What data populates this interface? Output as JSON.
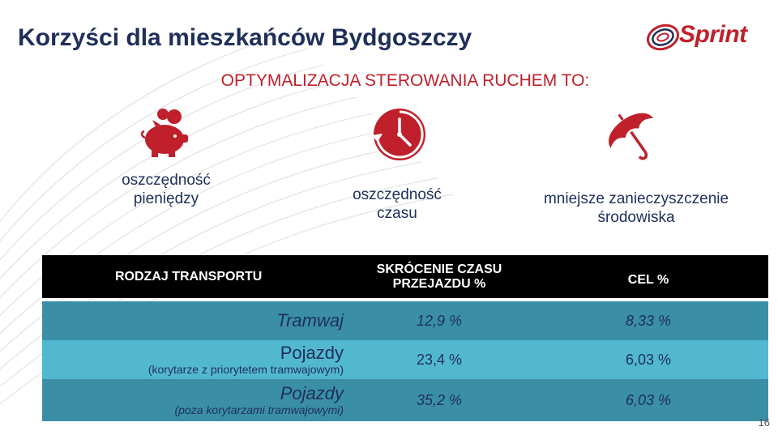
{
  "header": {
    "title": "Korzyści dla mieszkańców Bydgoszczy",
    "logo_text": "Sprint",
    "subtitle": "OPTYMALIZACJA STEROWANIA RUCHEM TO:"
  },
  "benefits": [
    {
      "icon": "piggy-bank-icon",
      "label_line1": "oszczędność",
      "label_line2": "pieniędzy"
    },
    {
      "icon": "clock-icon",
      "label_line1": "oszczędność",
      "label_line2": "czasu"
    },
    {
      "icon": "umbrella-icon",
      "label_line1": "mniejsze zanieczyszczenie",
      "label_line2": "środowiska"
    }
  ],
  "table": {
    "headers": {
      "col1": "RODZAJ TRANSPORTU",
      "col2_line1": "SKRÓCENIE CZASU",
      "col2_line2": "PRZEJAZDU %",
      "col3": "CEL %"
    },
    "rows": [
      {
        "label": "Tramwaj",
        "sublabel": "",
        "value": "12,9 %",
        "target": "8,33 %"
      },
      {
        "label": "Pojazdy",
        "sublabel": "(korytarze z priorytetem tramwajowym)",
        "value": "23,4 %",
        "target": "6,03 %"
      },
      {
        "label": "Pojazdy",
        "sublabel": "(poza korytarzami tramwajowymi)",
        "value": "35,2 %",
        "target": "6,03 %"
      }
    ]
  },
  "page_number": "16",
  "colors": {
    "brand_red": "#c0202b",
    "navy": "#1f2f5a",
    "teal_dark": "#3a8fa6",
    "teal_light": "#52b8cf"
  }
}
